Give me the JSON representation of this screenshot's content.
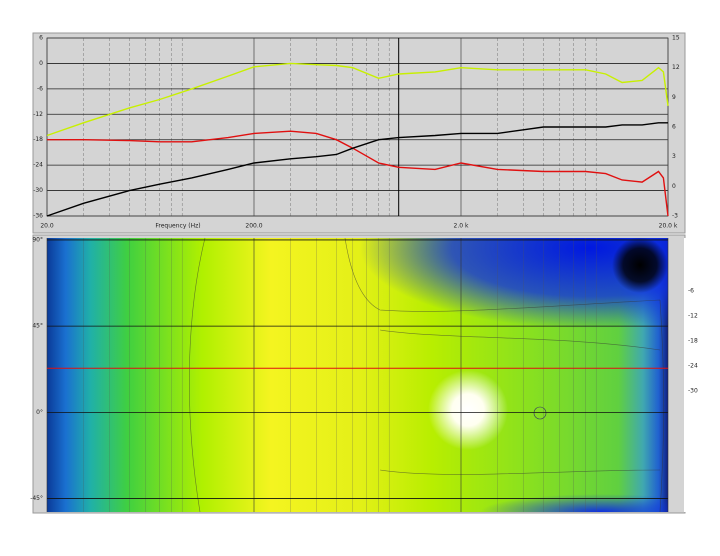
{
  "chart_data": [
    {
      "type": "line",
      "xlabel": "Frequency (Hz)",
      "log_x": true,
      "xlim": [
        20,
        20000
      ],
      "xticks": [
        {
          "value": 20,
          "label": "20.0"
        },
        {
          "value": 200,
          "label": "200.0"
        },
        {
          "value": 2000,
          "label": "2.0 k"
        },
        {
          "value": 20000,
          "label": "20.0 k"
        }
      ],
      "xminorticks": [
        30,
        40,
        50,
        60,
        70,
        80,
        90,
        300,
        400,
        500,
        600,
        700,
        800,
        900,
        3000,
        4000,
        5000,
        6000,
        7000,
        8000,
        9000
      ],
      "ylim": [
        -36,
        6
      ],
      "yticks": [
        6,
        0,
        -6,
        -12,
        -18,
        -24,
        -30,
        -36
      ],
      "y2lim": [
        -3,
        15
      ],
      "y2ticks": [
        15,
        12,
        9,
        6,
        3,
        0,
        -3
      ],
      "cursor_freq": 1000,
      "grid": true,
      "x": [
        20,
        30,
        50,
        70,
        100,
        150,
        200,
        300,
        400,
        500,
        600,
        800,
        1000,
        1500,
        2000,
        3000,
        5000,
        8000,
        10000,
        12000,
        15000,
        18000,
        19000,
        20000
      ],
      "series": [
        {
          "color": "#c8f000",
          "values": [
            -17,
            -14,
            -10.5,
            -8.5,
            -6,
            -3,
            -0.8,
            0,
            -0.3,
            -0.5,
            -1,
            -3.5,
            -2.5,
            -2,
            -1,
            -1.5,
            -1.5,
            -1.5,
            -2.5,
            -4.5,
            -4,
            -1,
            -2,
            -10
          ]
        },
        {
          "color": "#e01010",
          "values": [
            -18,
            -18,
            -18.2,
            -18.5,
            -18.5,
            -17.5,
            -16.5,
            -16,
            -16.5,
            -18,
            -20,
            -23.5,
            -24.5,
            -25,
            -23.5,
            -25,
            -25.5,
            -25.5,
            -26,
            -27.5,
            -28,
            -25.5,
            -27,
            -36
          ]
        },
        {
          "color": "#000000",
          "values": [
            -36,
            -33,
            -30,
            -28.5,
            -27,
            -25,
            -23.5,
            -22.5,
            -22,
            -21.5,
            -20,
            -18,
            -17.5,
            -17,
            -16.5,
            -16.5,
            -15,
            -15,
            -15,
            -14.5,
            -14.5,
            -14,
            -14,
            -14
          ]
        }
      ]
    },
    {
      "type": "heatmap",
      "ylim": [
        -52,
        91
      ],
      "yticks": [
        {
          "value": 90,
          "label": "90°"
        },
        {
          "value": 45,
          "label": "45°"
        },
        {
          "value": 0,
          "label": "0°"
        },
        {
          "value": -45,
          "label": "-45°"
        }
      ],
      "cursor_angle": 23,
      "colorbar_ticks": [
        -6,
        -12,
        -18,
        -24,
        -30
      ]
    }
  ]
}
